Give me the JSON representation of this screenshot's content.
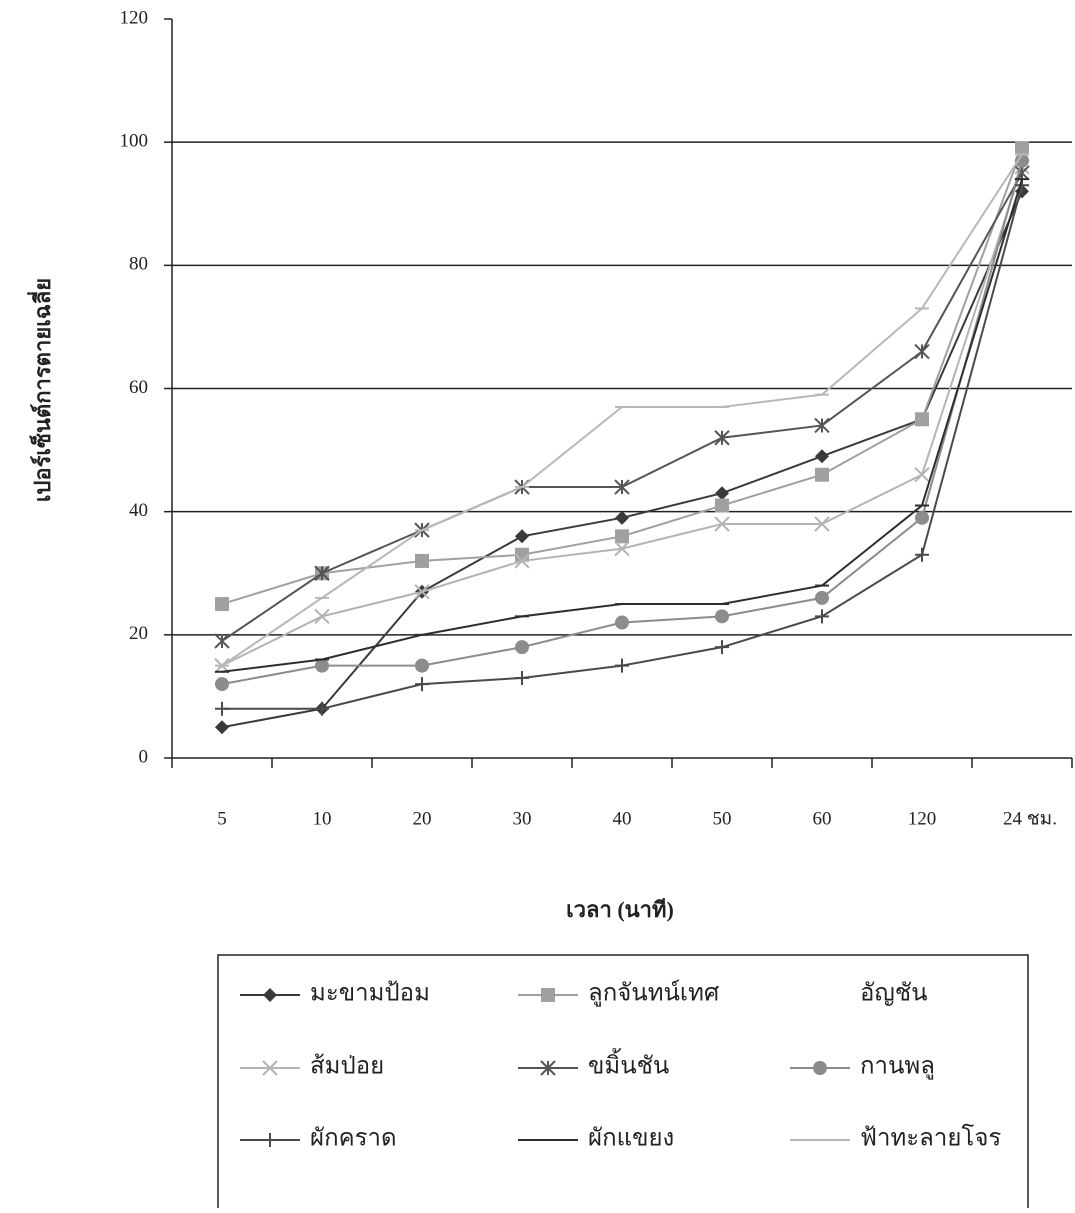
{
  "chart_data": {
    "type": "line",
    "x_label": "เวลา (นาที)",
    "y_label": "เปอร์เซ็นต์การตายเฉลี่ย",
    "categories": [
      "5",
      "10",
      "20",
      "30",
      "40",
      "50",
      "60",
      "120",
      "24 ชม."
    ],
    "ylim": [
      0,
      120
    ],
    "yticks": [
      0,
      20,
      40,
      60,
      80,
      100,
      120
    ],
    "grid": true,
    "series": [
      {
        "name": "มะขามป้อม",
        "color": "#3a3a3a",
        "marker": "diamond",
        "values": [
          5,
          8,
          27,
          36,
          39,
          43,
          49,
          55,
          92
        ]
      },
      {
        "name": "ลูกจันทน์เทศ",
        "color": "#a0a0a0",
        "marker": "square",
        "values": [
          25,
          30,
          32,
          33,
          36,
          41,
          46,
          55,
          99
        ]
      },
      {
        "name": "อัญชัน",
        "color": "#ffffff",
        "marker": "none",
        "values": [
          null,
          null,
          null,
          null,
          null,
          null,
          null,
          null,
          null
        ]
      },
      {
        "name": "ส้มป่อย",
        "color": "#b4b4b4",
        "marker": "x",
        "values": [
          15,
          23,
          27,
          32,
          34,
          38,
          38,
          46,
          96
        ]
      },
      {
        "name": "ขมิ้นชัน",
        "color": "#555555",
        "marker": "star",
        "values": [
          19,
          30,
          37,
          44,
          44,
          52,
          54,
          66,
          95
        ]
      },
      {
        "name": "กานพลู",
        "color": "#8c8c8c",
        "marker": "circle",
        "values": [
          12,
          15,
          15,
          18,
          22,
          23,
          26,
          39,
          97
        ]
      },
      {
        "name": "ผักคราด",
        "color": "#4a4a4a",
        "marker": "plus",
        "values": [
          8,
          8,
          12,
          13,
          15,
          18,
          23,
          33,
          93
        ]
      },
      {
        "name": "ผักแขยง",
        "color": "#2e2e2e",
        "marker": "dash",
        "values": [
          14,
          16,
          20,
          23,
          25,
          25,
          28,
          41,
          94
        ]
      },
      {
        "name": "ฟ้าทะลายโจร",
        "color": "#b8b8b8",
        "marker": "dash",
        "values": [
          15,
          26,
          37,
          44,
          57,
          57,
          59,
          73,
          98
        ]
      }
    ]
  }
}
